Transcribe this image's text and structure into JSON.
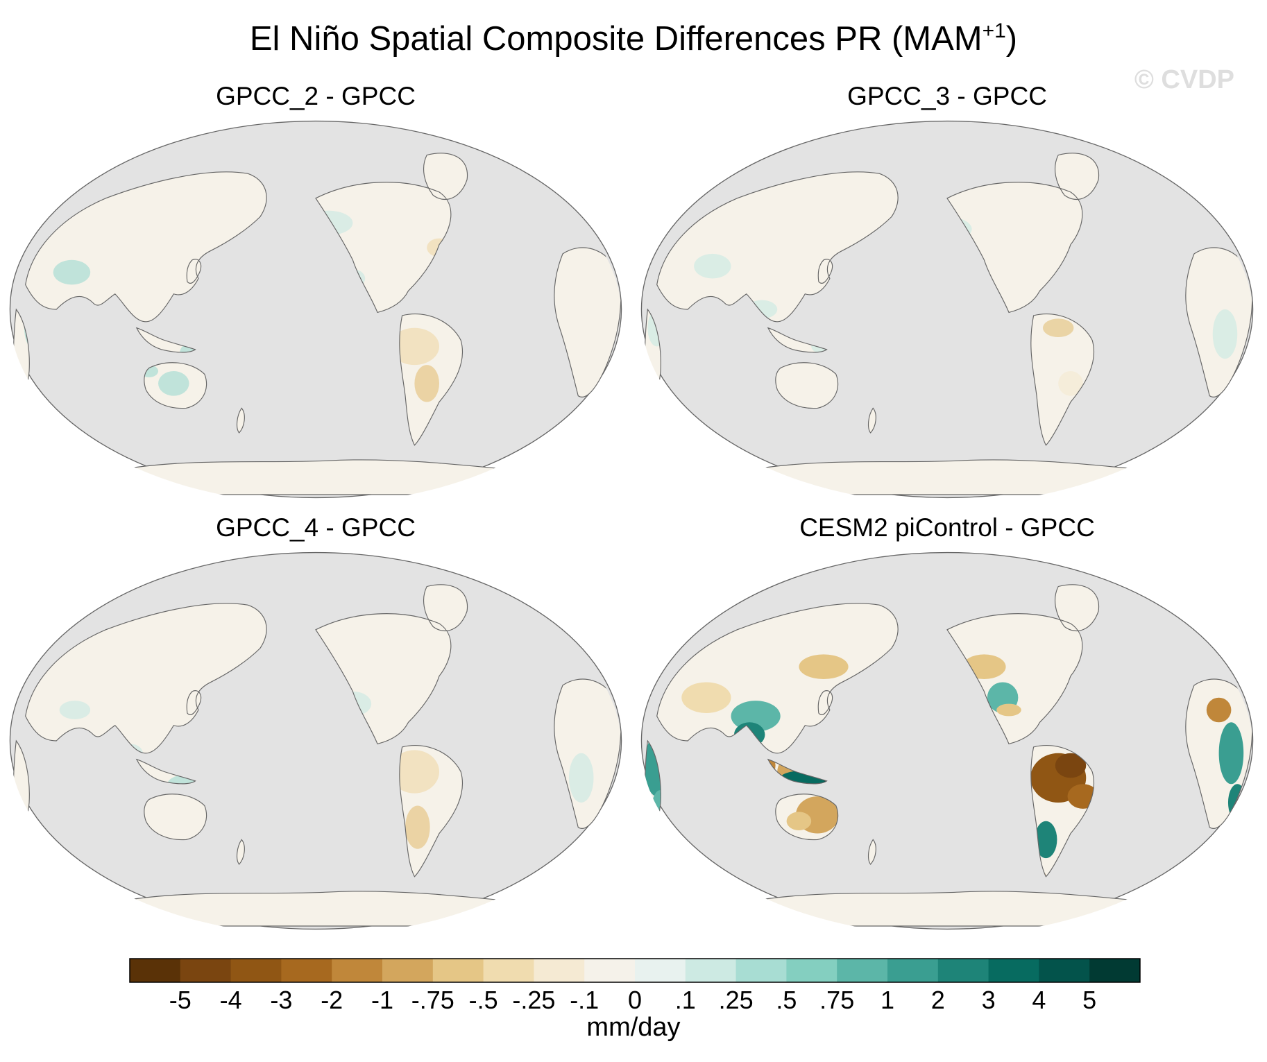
{
  "title": {
    "main": "El Niño Spatial Composite Differences PR (MAM",
    "superscript": "+1",
    "closing": ")"
  },
  "watermark": "© CVDP",
  "panels": [
    {
      "title": "GPCC_2 - GPCC",
      "intensity": 0.35
    },
    {
      "title": "GPCC_3 - GPCC",
      "intensity": 0.3
    },
    {
      "title": "GPCC_4 - GPCC",
      "intensity": 0.35
    },
    {
      "title": "CESM2 piControl - GPCC",
      "intensity": 1.0
    }
  ],
  "colorbar": {
    "units": "mm/day",
    "labels": [
      "-5",
      "-4",
      "-3",
      "-2",
      "-1",
      "-.75",
      "-.5",
      "-.25",
      "-.1",
      "0",
      ".1",
      ".25",
      ".5",
      ".75",
      "1",
      "2",
      "3",
      "4",
      "5"
    ],
    "colors": [
      "#5a3207",
      "#7a4510",
      "#905614",
      "#a7691f",
      "#c0873a",
      "#d3a65d",
      "#e5c686",
      "#f0dcaf",
      "#f5ead3",
      "#f5f2ea",
      "#e8f2ef",
      "#cdeae3",
      "#a8ddd3",
      "#84cfc0",
      "#5cb6a8",
      "#3a9e91",
      "#1e8478",
      "#076b60",
      "#03534b",
      "#013a33"
    ]
  },
  "colors": {
    "ocean": "#e3e3e3",
    "coast": "#666666",
    "land_base": "#f6f2e9"
  }
}
